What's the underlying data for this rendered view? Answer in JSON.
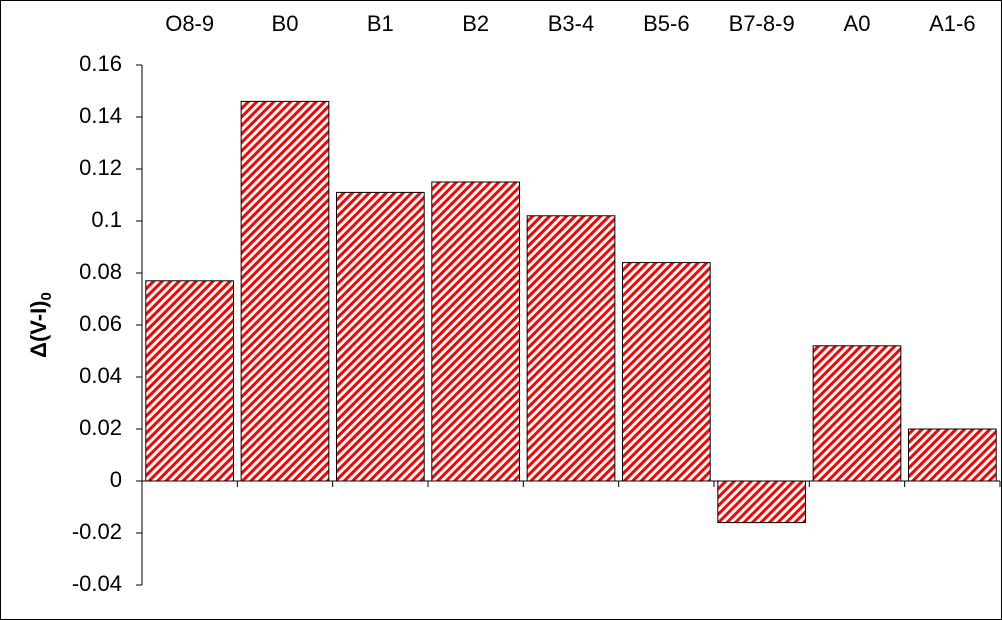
{
  "chart_data": {
    "type": "bar",
    "ylabel": {
      "text": "Δ(V-I)",
      "subscript": "0"
    },
    "categories": [
      "O8-9",
      "B0",
      "B1",
      "B2",
      "B3-4",
      "B5-6",
      "B7-8-9",
      "A0",
      "A1-6"
    ],
    "values": [
      0.077,
      0.146,
      0.111,
      0.115,
      0.102,
      0.084,
      -0.016,
      0.052,
      0.02
    ],
    "color": "#ff0000",
    "pattern": "hatch",
    "ylim": [
      -0.04,
      0.16
    ],
    "yticks": [
      -0.04,
      -0.02,
      0,
      0.02,
      0.04,
      0.06,
      0.08,
      0.1,
      0.12,
      0.14,
      0.16
    ],
    "grid": false
  }
}
